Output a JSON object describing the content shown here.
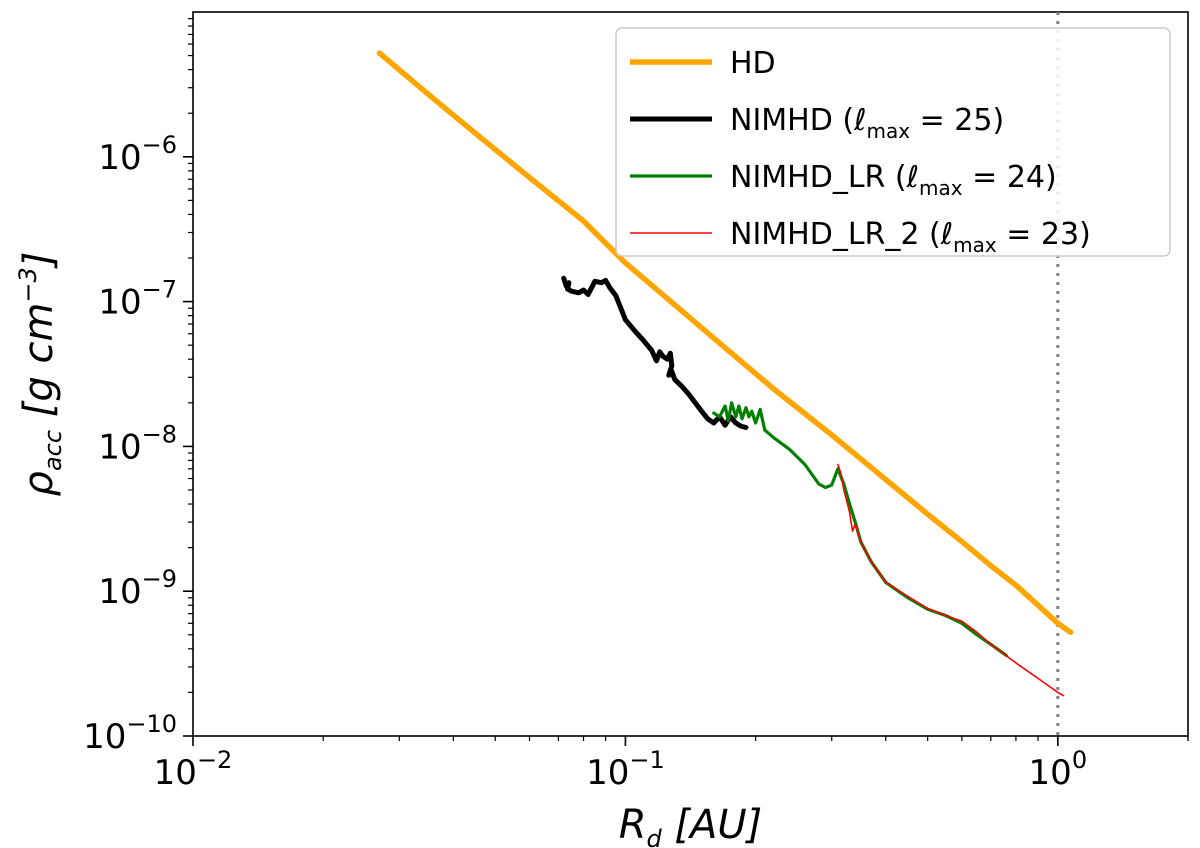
{
  "chart_data": {
    "type": "line",
    "xscale": "log",
    "yscale": "log",
    "xlim": [
      0.01,
      2.0
    ],
    "ylim": [
      1e-10,
      1e-05
    ],
    "grid": false,
    "legend_position": "top-right",
    "xlabel": "R_d [AU]",
    "ylabel": "ρ_acc [g cm^-3]",
    "x_ticks": [
      {
        "value": 0.01,
        "base": "10",
        "exp": "−2"
      },
      {
        "value": 0.1,
        "base": "10",
        "exp": "−1"
      },
      {
        "value": 1.0,
        "base": "10",
        "exp": "0"
      }
    ],
    "y_ticks": [
      {
        "value": 1e-10,
        "base": "10",
        "exp": "−10"
      },
      {
        "value": 1e-09,
        "base": "10",
        "exp": "−9"
      },
      {
        "value": 1e-08,
        "base": "10",
        "exp": "−8"
      },
      {
        "value": 1e-07,
        "base": "10",
        "exp": "−7"
      },
      {
        "value": 1e-06,
        "base": "10",
        "exp": "−6"
      }
    ],
    "vline": {
      "x": 1.0,
      "style": "dotted",
      "color": "#808080"
    },
    "series": [
      {
        "name": "HD",
        "color": "#ffa500",
        "width": 5.5,
        "x": [
          0.027,
          0.035,
          0.045,
          0.06,
          0.08,
          0.1,
          0.13,
          0.17,
          0.22,
          0.3,
          0.4,
          0.5,
          0.6,
          0.7,
          0.8,
          0.9,
          1.0,
          1.07
        ],
        "y": [
          5.2e-06,
          2.7e-06,
          1.45e-06,
          7.2e-07,
          3.6e-07,
          1.85e-07,
          9.5e-08,
          4.8e-08,
          2.5e-08,
          1.2e-08,
          5.9e-09,
          3.4e-09,
          2.2e-09,
          1.5e-09,
          1.1e-09,
          8e-10,
          6e-10,
          5.2e-10
        ]
      },
      {
        "name": "NIMHD (ℓmax = 25)",
        "legend": {
          "prefix": "NIMHD (",
          "ell": "ℓ",
          "sub": "max",
          "suffix": " = 25)"
        },
        "color": "#000000",
        "width": 5,
        "x": [
          0.072,
          0.073,
          0.074,
          0.0735,
          0.075,
          0.078,
          0.08,
          0.082,
          0.085,
          0.088,
          0.09,
          0.092,
          0.095,
          0.1,
          0.105,
          0.11,
          0.115,
          0.118,
          0.12,
          0.122,
          0.125,
          0.127,
          0.128,
          0.126,
          0.128,
          0.13,
          0.135,
          0.14,
          0.145,
          0.15,
          0.155,
          0.16,
          0.165,
          0.17,
          0.175,
          0.18,
          0.185,
          0.19
        ],
        "y": [
          1.45e-07,
          1.28e-07,
          1.35e-07,
          1.22e-07,
          1.18e-07,
          1.15e-07,
          1.2e-07,
          1.12e-07,
          1.38e-07,
          1.35e-07,
          1.4e-07,
          1.25e-07,
          1.1e-07,
          7.5e-08,
          6.3e-08,
          5.4e-08,
          4.6e-08,
          3.9e-08,
          4.5e-08,
          4.2e-08,
          4e-08,
          4.4e-08,
          3.6e-08,
          3.1e-08,
          3.3e-08,
          2.9e-08,
          2.6e-08,
          2.3e-08,
          2e-08,
          1.75e-08,
          1.55e-08,
          1.45e-08,
          1.6e-08,
          1.4e-08,
          1.6e-08,
          1.45e-08,
          1.38e-08,
          1.35e-08
        ]
      },
      {
        "name": "NIMHD_LR (ℓmax = 24)",
        "legend": {
          "prefix": "NIMHD_LR (",
          "ell": "ℓ",
          "sub": "max",
          "suffix": " = 24)"
        },
        "color": "#008000",
        "width": 3.2,
        "x": [
          0.16,
          0.165,
          0.17,
          0.173,
          0.176,
          0.18,
          0.183,
          0.186,
          0.19,
          0.193,
          0.196,
          0.2,
          0.205,
          0.21,
          0.22,
          0.24,
          0.26,
          0.28,
          0.29,
          0.3,
          0.31,
          0.32,
          0.33,
          0.34,
          0.35,
          0.37,
          0.4,
          0.45,
          0.5,
          0.55,
          0.6,
          0.65,
          0.7,
          0.76
        ],
        "y": [
          1.7e-08,
          1.6e-08,
          1.9e-08,
          1.5e-08,
          2e-08,
          1.6e-08,
          1.9e-08,
          1.55e-08,
          1.85e-08,
          1.6e-08,
          1.75e-08,
          1.45e-08,
          1.8e-08,
          1.3e-08,
          1.15e-08,
          9.5e-09,
          7.5e-09,
          5.5e-09,
          5.2e-09,
          5.4e-09,
          7e-09,
          5.5e-09,
          4e-09,
          3e-09,
          2.2e-09,
          1.6e-09,
          1.15e-09,
          9e-10,
          7.5e-10,
          6.8e-10,
          6e-10,
          5e-10,
          4.3e-10,
          3.6e-10
        ]
      },
      {
        "name": "NIMHD_LR_2 (ℓmax = 23)",
        "legend": {
          "prefix": "NIMHD_LR_2 (",
          "ell": "ℓ",
          "sub": "max",
          "suffix": " = 23)"
        },
        "color": "#ff0000",
        "width": 1.6,
        "x": [
          0.31,
          0.315,
          0.32,
          0.325,
          0.33,
          0.335,
          0.34,
          0.35,
          0.37,
          0.4,
          0.45,
          0.5,
          0.55,
          0.6,
          0.65,
          0.7,
          0.8,
          0.9,
          1.0,
          1.03
        ],
        "y": [
          7.5e-09,
          6.5e-09,
          5e-09,
          4.2e-09,
          3.5e-09,
          2.6e-09,
          2.9e-09,
          2.2e-09,
          1.6e-09,
          1.15e-09,
          9.2e-10,
          7.6e-10,
          6.8e-10,
          6.2e-10,
          5.2e-10,
          4.3e-10,
          3.2e-10,
          2.5e-10,
          2e-10,
          1.9e-10
        ]
      }
    ]
  }
}
